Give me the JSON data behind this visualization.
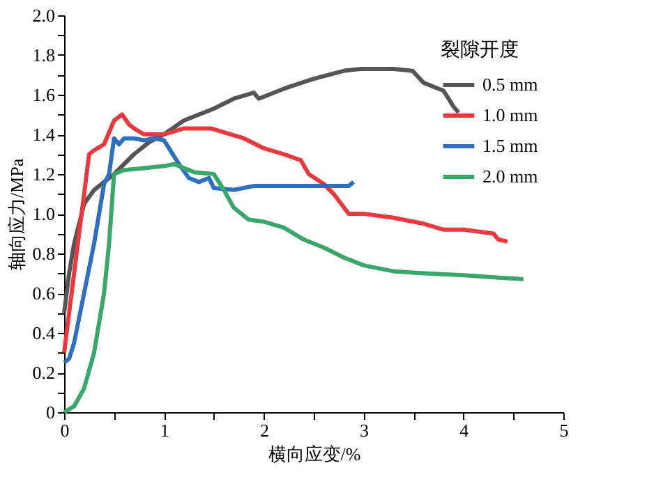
{
  "chart_data": {
    "type": "line",
    "xlabel": "横向应变/%",
    "ylabel": "轴向应力/MPa",
    "legend_title": "裂隙开度",
    "legend": "top right",
    "grid": false,
    "marker": "none",
    "line_style": "solid",
    "xlim": [
      0,
      5
    ],
    "xticks": [
      0,
      {
        "value": 0.5,
        "label": null
      },
      1,
      {
        "value": 1.5,
        "label": null
      },
      2,
      {
        "value": 2.5,
        "label": null
      },
      3,
      {
        "value": 3.5,
        "label": null
      },
      4,
      {
        "value": 4.5,
        "label": null
      },
      5
    ],
    "ylim": [
      0,
      2
    ],
    "yticks": [
      0,
      {
        "value": 0.1,
        "label": null
      },
      0.2,
      {
        "value": 0.3,
        "label": null
      },
      0.4,
      {
        "value": 0.5,
        "label": null
      },
      0.6,
      {
        "value": 0.7,
        "label": null
      },
      0.8,
      {
        "value": 0.9,
        "label": null
      },
      {
        "value": 1,
        "label": "1.0"
      },
      {
        "value": 1.1,
        "label": null
      },
      1.2,
      {
        "value": 1.3,
        "label": null
      },
      1.4,
      {
        "value": 1.5,
        "label": null
      },
      1.6,
      {
        "value": 1.7,
        "label": null
      },
      1.8,
      {
        "value": 1.9,
        "label": null
      },
      {
        "value": 2,
        "label": "2.0"
      }
    ],
    "series": [
      {
        "name": "0.5 mm",
        "color": "#555555",
        "x": [
          0,
          0.05,
          0.1,
          0.2,
          0.3,
          0.5,
          0.7,
          0.85,
          1.0,
          1.2,
          1.5,
          1.7,
          1.9,
          1.95,
          2.2,
          2.5,
          2.8,
          2.97,
          3.3,
          3.49,
          3.6,
          3.8,
          3.85,
          3.9,
          3.95
        ],
        "values": [
          0.5,
          0.7,
          0.85,
          1.05,
          1.12,
          1.2,
          1.3,
          1.36,
          1.4,
          1.47,
          1.53,
          1.58,
          1.61,
          1.58,
          1.63,
          1.68,
          1.72,
          1.73,
          1.73,
          1.72,
          1.66,
          1.62,
          1.58,
          1.54,
          1.51
        ]
      },
      {
        "name": "1.0 mm",
        "color": "#e8393f",
        "x": [
          0,
          0.1,
          0.2,
          0.25,
          0.3,
          0.4,
          0.5,
          0.58,
          0.65,
          0.7,
          0.8,
          1.0,
          1.2,
          1.47,
          1.8,
          2.0,
          2.2,
          2.37,
          2.45,
          2.6,
          2.7,
          2.85,
          3.0,
          3.3,
          3.6,
          3.8,
          4.0,
          4.3,
          4.35,
          4.44
        ],
        "values": [
          0.3,
          0.7,
          1.1,
          1.3,
          1.32,
          1.35,
          1.47,
          1.5,
          1.45,
          1.43,
          1.4,
          1.4,
          1.43,
          1.43,
          1.38,
          1.33,
          1.3,
          1.27,
          1.2,
          1.15,
          1.1,
          1.0,
          1.0,
          0.98,
          0.95,
          0.92,
          0.92,
          0.9,
          0.87,
          0.86
        ]
      },
      {
        "name": "1.5 mm",
        "color": "#2e6fbe",
        "x": [
          0,
          0.05,
          0.1,
          0.2,
          0.3,
          0.4,
          0.45,
          0.5,
          0.55,
          0.6,
          0.7,
          0.8,
          0.9,
          1.0,
          1.05,
          1.15,
          1.25,
          1.35,
          1.45,
          1.5,
          1.7,
          1.9,
          2.2,
          2.6,
          2.85,
          2.9
        ],
        "values": [
          0.25,
          0.27,
          0.35,
          0.6,
          0.85,
          1.15,
          1.2,
          1.38,
          1.35,
          1.38,
          1.38,
          1.37,
          1.38,
          1.37,
          1.33,
          1.25,
          1.18,
          1.16,
          1.18,
          1.13,
          1.12,
          1.14,
          1.14,
          1.14,
          1.14,
          1.16
        ]
      },
      {
        "name": "2.0 mm",
        "color": "#3aa76a",
        "x": [
          0,
          0.1,
          0.2,
          0.3,
          0.4,
          0.45,
          0.5,
          0.6,
          0.8,
          1.0,
          1.1,
          1.3,
          1.5,
          1.6,
          1.7,
          1.85,
          2.0,
          2.2,
          2.4,
          2.6,
          2.8,
          3.0,
          3.3,
          3.6,
          4.0,
          4.3,
          4.6
        ],
        "values": [
          0,
          0.03,
          0.12,
          0.3,
          0.6,
          0.85,
          1.2,
          1.22,
          1.23,
          1.24,
          1.25,
          1.21,
          1.2,
          1.12,
          1.03,
          0.97,
          0.96,
          0.93,
          0.87,
          0.83,
          0.78,
          0.74,
          0.71,
          0.7,
          0.69,
          0.68,
          0.67
        ]
      }
    ]
  }
}
